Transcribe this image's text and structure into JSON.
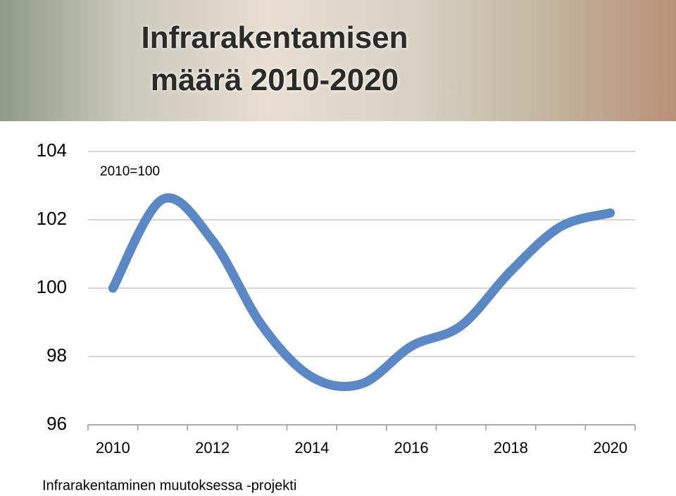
{
  "chart_data": {
    "type": "line",
    "title": "Infrarakentamisen määrä 2010-2020",
    "annotation": "2010=100",
    "source": "Infrarakentaminen muutoksessa -projekti",
    "categories": [
      "2010",
      null,
      "2012",
      null,
      "2014",
      null,
      "2016",
      null,
      "2018",
      null,
      "2020"
    ],
    "series": [
      {
        "color": "#5b87c4",
        "values": [
          100,
          102.6,
          101.4,
          98.9,
          97.4,
          97.2,
          98.3,
          98.9,
          100.5,
          101.8,
          102.2
        ]
      }
    ],
    "ylim": [
      96,
      104
    ],
    "yticks": [
      96,
      98,
      100,
      102,
      104
    ],
    "grid": true
  }
}
